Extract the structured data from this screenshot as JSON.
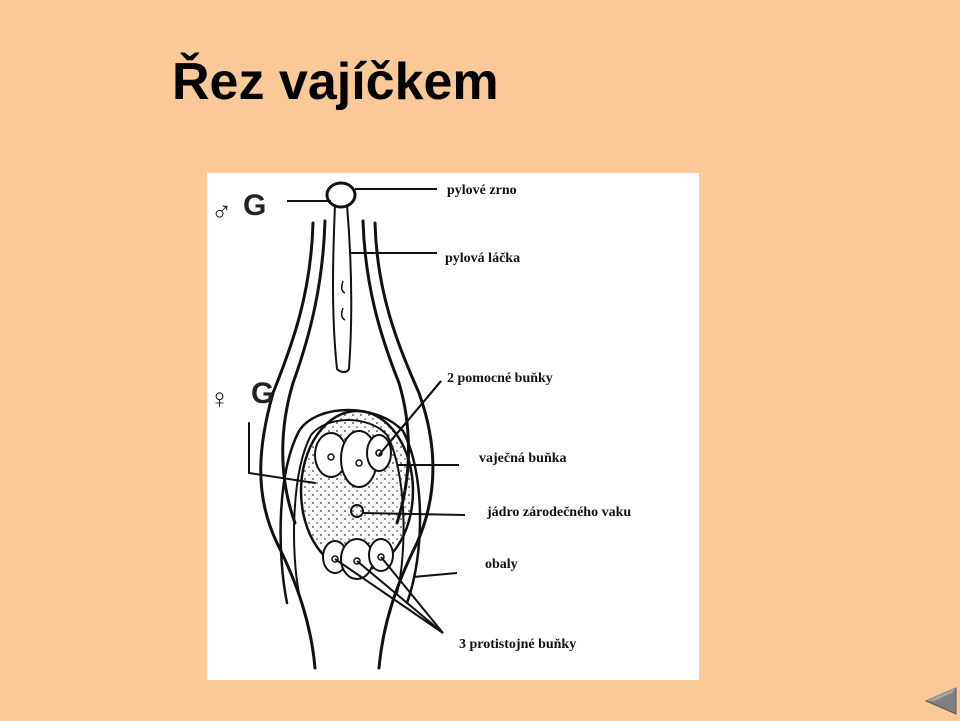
{
  "slide": {
    "title": "Řez vajíčkem"
  },
  "diagram": {
    "male_symbol": "♂",
    "male_letter": "G",
    "female_symbol": "♀",
    "female_letter": "G",
    "labels": {
      "pollen_grain": "pylové zrno",
      "pollen_tube": "pylová láčka",
      "synergids": "2 pomocné buňky",
      "egg_cell": "vaječná buňka",
      "central_nucleus": "jádro zárodečného vaku",
      "integuments": "obaly",
      "antipodals": "3 protistojné buňky"
    }
  },
  "navigation": {
    "back_icon": "triangle-left-icon"
  }
}
